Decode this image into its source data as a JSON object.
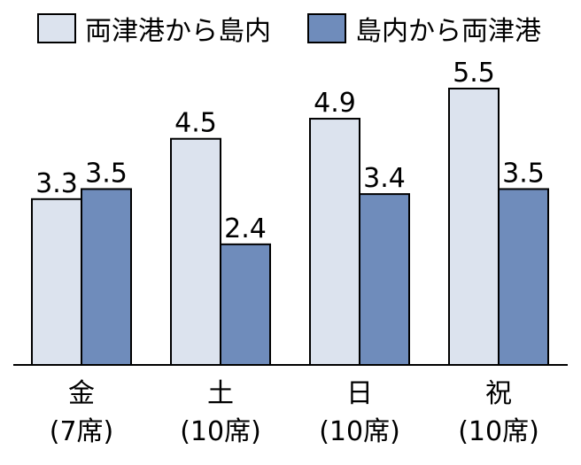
{
  "colors": {
    "series1": "#dce3ee",
    "series2": "#6f8cbb",
    "stroke": "#000000"
  },
  "chart_data": {
    "type": "bar",
    "categories": [
      "金\n(7席)",
      "土\n(10席)",
      "日\n(10席)",
      "祝\n(10席)"
    ],
    "category_lines": [
      [
        "金",
        "(7席)"
      ],
      [
        "土",
        "(10席)"
      ],
      [
        "日",
        "(10席)"
      ],
      [
        "祝",
        "(10席)"
      ]
    ],
    "series": [
      {
        "name": "両津港から島内",
        "values": [
          3.3,
          4.5,
          4.9,
          5.5
        ],
        "labels": [
          "3.3",
          "4.5",
          "4.9",
          "5.5"
        ]
      },
      {
        "name": "島内から両津港",
        "values": [
          3.5,
          2.4,
          3.4,
          3.5
        ],
        "labels": [
          "3.5",
          "2.4",
          "3.4",
          "3.5"
        ]
      }
    ],
    "ylim": [
      0,
      6
    ],
    "legend": "top",
    "grid": false
  }
}
